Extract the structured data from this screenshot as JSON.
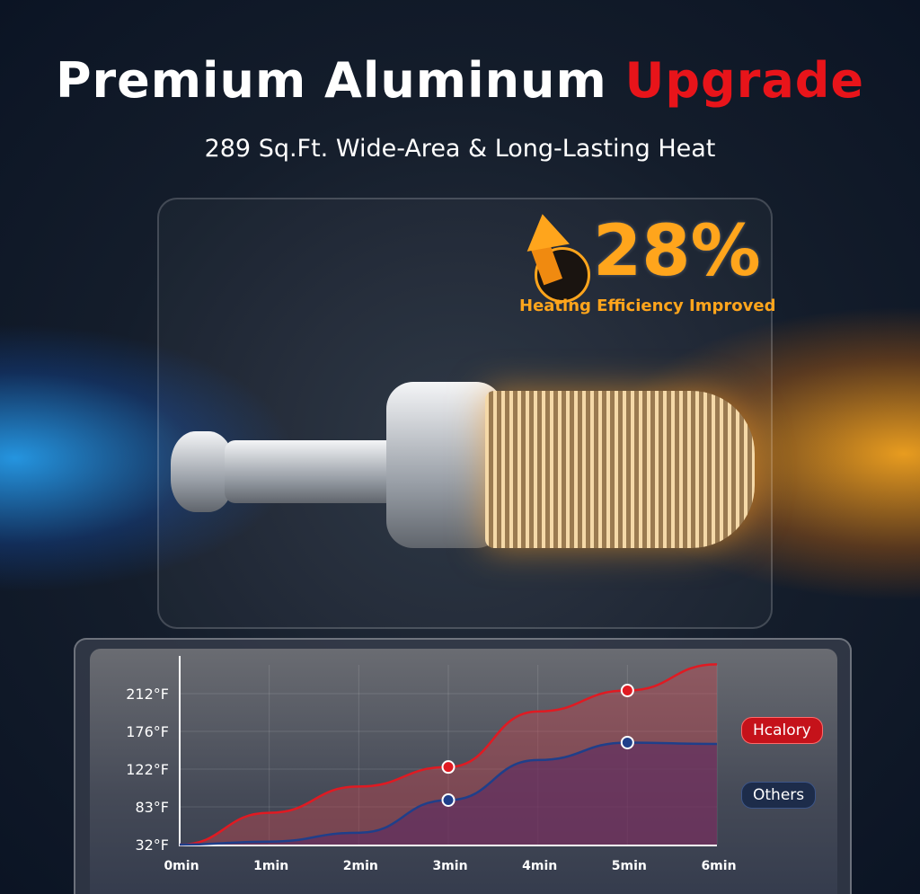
{
  "header": {
    "title_main": "Premium Aluminum",
    "title_accent": "Upgrade",
    "subtitle": "289 Sq.Ft. Wide-Area & Long-Lasting Heat"
  },
  "badge": {
    "value": "28%",
    "caption": "Heating Efficiency Improved",
    "icon": "arrow-up-icon",
    "color": "#ffa51c"
  },
  "colors": {
    "accent": "#e8141a",
    "hcalory": "#e01a22",
    "others": "#1f3f8a"
  },
  "chart_data": {
    "type": "area",
    "x": [
      0,
      1,
      2,
      3,
      4,
      5,
      6
    ],
    "x_tick_labels": [
      "0min",
      "1min",
      "2min",
      "3min",
      "4min",
      "5min",
      "6min"
    ],
    "y_tick_values": [
      32,
      83,
      122,
      176,
      212
    ],
    "y_tick_labels": [
      "32°F",
      "83°F",
      "122°F",
      "176°F",
      "212°F"
    ],
    "y_scale": "evenly spaced ticks (non-linear)",
    "grid": true,
    "legend": "right",
    "series": [
      {
        "name": "Hcalory",
        "values": [
          32,
          75,
          104,
          125,
          195,
          215,
          240
        ],
        "markers_at": [
          3,
          5
        ],
        "color": "#e01a22"
      },
      {
        "name": "Others",
        "values": [
          32,
          36,
          48,
          90,
          135,
          160,
          158
        ],
        "markers_at": [
          3,
          5
        ],
        "color": "#1f3f8a"
      }
    ]
  }
}
